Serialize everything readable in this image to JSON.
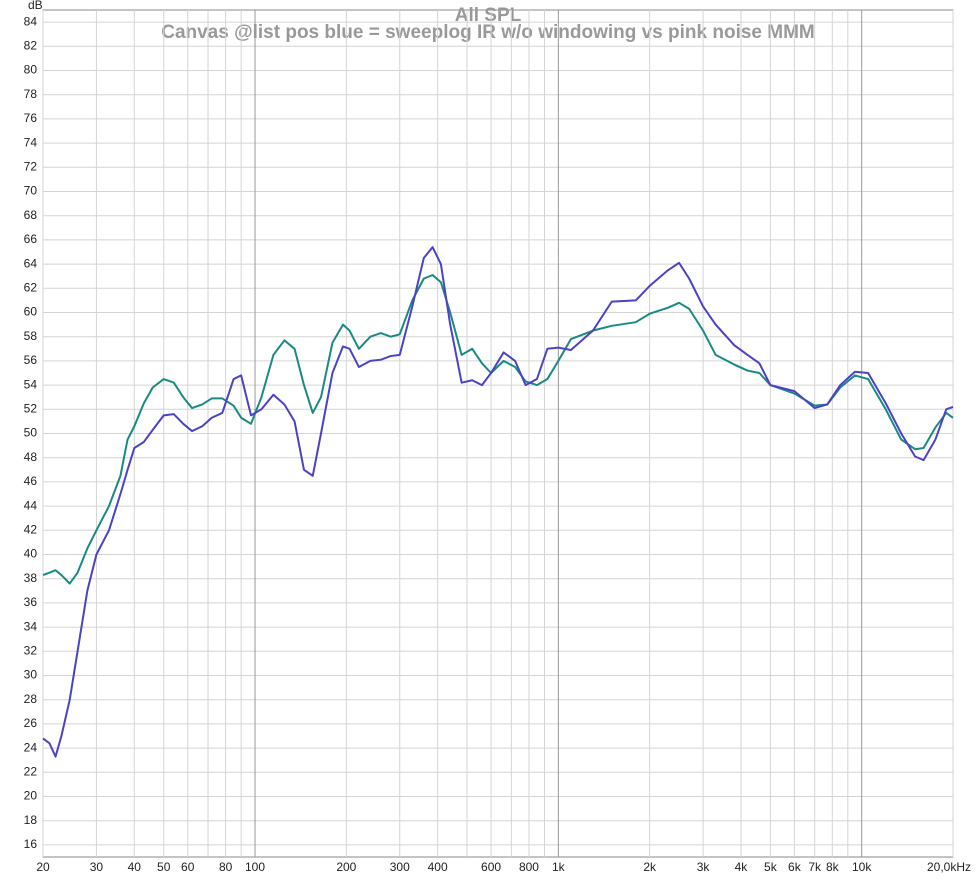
{
  "chart_data": {
    "type": "line",
    "title": "All SPL",
    "subtitle": "Canvas @list pos blue = sweeplog IR w/o windowing vs pink noise MMM",
    "y_label": "dB",
    "x_scale": "log",
    "grid": true,
    "xlim": [
      20,
      20000
    ],
    "ylim": [
      15,
      85
    ],
    "xticks": [
      20,
      30,
      40,
      50,
      60,
      80,
      100,
      200,
      300,
      400,
      600,
      800,
      {
        "value": 1000,
        "label": "1k"
      },
      {
        "value": 2000,
        "label": "2k"
      },
      {
        "value": 3000,
        "label": "3k"
      },
      {
        "value": 4000,
        "label": "4k"
      },
      {
        "value": 5000,
        "label": "5k"
      },
      {
        "value": 6000,
        "label": "6k"
      },
      {
        "value": 7000,
        "label": "7k"
      },
      {
        "value": 8000,
        "label": "8k"
      },
      {
        "value": 10000,
        "label": "10k"
      },
      {
        "value": 20000,
        "label": "20,0kHz"
      }
    ],
    "xminor": [
      70,
      90,
      500,
      700,
      900,
      9000
    ],
    "yticks": [
      16,
      18,
      20,
      22,
      24,
      26,
      28,
      30,
      32,
      34,
      36,
      38,
      40,
      42,
      44,
      46,
      48,
      50,
      52,
      54,
      56,
      58,
      60,
      62,
      64,
      66,
      68,
      70,
      72,
      74,
      76,
      78,
      80,
      82,
      84
    ],
    "x": [
      20,
      21,
      22,
      23,
      24.5,
      26,
      28,
      30,
      33,
      36,
      38,
      40,
      43,
      46,
      50,
      54,
      58,
      62,
      67,
      72,
      78,
      85,
      90,
      97,
      105,
      115,
      125,
      135,
      145,
      155,
      165,
      180,
      195,
      205,
      220,
      240,
      260,
      280,
      300,
      330,
      360,
      385,
      410,
      440,
      480,
      520,
      560,
      600,
      660,
      720,
      780,
      850,
      920,
      1000,
      1100,
      1300,
      1500,
      1800,
      2000,
      2300,
      2500,
      2700,
      3000,
      3300,
      3800,
      4200,
      4600,
      5000,
      6000,
      7000,
      7700,
      8500,
      9500,
      10500,
      12000,
      13500,
      15000,
      16000,
      17500,
      19000,
      20000
    ],
    "series": [
      {
        "color": "#4b42c6",
        "values": [
          24.8,
          24.4,
          23.3,
          25,
          28,
          32,
          37,
          40,
          42,
          45,
          47,
          48.8,
          49.3,
          50.3,
          51.5,
          51.6,
          50.8,
          50.2,
          50.6,
          51.3,
          51.7,
          54.5,
          54.8,
          51.5,
          52,
          53.2,
          52.4,
          51,
          47,
          46.5,
          50,
          55,
          57.2,
          57,
          55.5,
          56,
          56.1,
          56.4,
          56.5,
          60.5,
          64.5,
          65.4,
          64,
          59,
          54.2,
          54.4,
          54,
          55,
          56.7,
          56,
          54,
          54.5,
          57,
          57.1,
          56.9,
          58.5,
          60.9,
          61,
          62.2,
          63.5,
          64.1,
          62.8,
          60.5,
          59,
          57.3,
          56.5,
          55.8,
          54,
          53.5,
          52.1,
          52.4,
          54,
          55.1,
          55,
          52.5,
          50,
          48.1,
          47.8,
          49.5,
          52,
          52.2
        ]
      },
      {
        "color": "#1a8a80",
        "values": [
          38.3,
          38.5,
          38.7,
          38.3,
          37.6,
          38.5,
          40.5,
          42,
          44,
          46.5,
          49.5,
          50.6,
          52.5,
          53.8,
          54.5,
          54.2,
          53,
          52.1,
          52.4,
          52.9,
          52.9,
          52.3,
          51.3,
          50.8,
          53,
          56.5,
          57.7,
          57,
          54,
          51.7,
          53,
          57.5,
          59,
          58.5,
          57,
          58,
          58.3,
          58,
          58.2,
          61,
          62.8,
          63.1,
          62.5,
          60,
          56.5,
          57,
          55.8,
          55,
          56,
          55.5,
          54.3,
          54,
          54.5,
          56,
          57.8,
          58.5,
          58.9,
          59.2,
          59.9,
          60.4,
          60.8,
          60.3,
          58.5,
          56.5,
          55.7,
          55.2,
          55,
          54,
          53.3,
          52.3,
          52.4,
          53.8,
          54.8,
          54.5,
          52,
          49.5,
          48.7,
          48.8,
          50.5,
          51.7,
          51.3
        ]
      }
    ]
  }
}
